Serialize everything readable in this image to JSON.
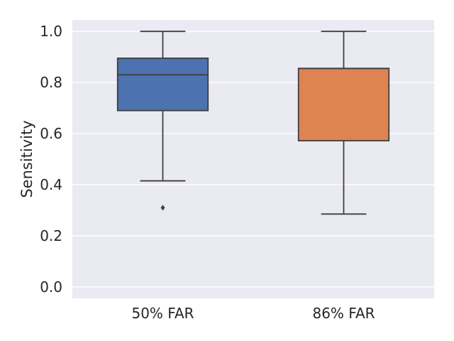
{
  "chart_data": {
    "type": "box",
    "ylabel": "Sensitivity",
    "xlabel": "",
    "ylim": [
      -0.045,
      1.045
    ],
    "grid": true,
    "yticks": [
      {
        "value": 0.0,
        "label": "0.0"
      },
      {
        "value": 0.2,
        "label": "0.2"
      },
      {
        "value": 0.4,
        "label": "0.4"
      },
      {
        "value": 0.6,
        "label": "0.6"
      },
      {
        "value": 0.8,
        "label": "0.8"
      },
      {
        "value": 1.0,
        "label": "1.0"
      }
    ],
    "categories": [
      "50% FAR",
      "86% FAR"
    ],
    "boxes": [
      {
        "category": "50% FAR",
        "whisker_low": 0.415,
        "q1": 0.69,
        "median": 0.83,
        "q3": 0.895,
        "whisker_high": 1.0,
        "outliers": [
          0.31
        ],
        "color": "#4c72b0"
      },
      {
        "category": "86% FAR",
        "whisker_low": 0.285,
        "q1": 0.572,
        "median": 0.855,
        "q3": 0.855,
        "whisker_high": 1.0,
        "outliers": [],
        "color": "#dd8452"
      }
    ],
    "colors": {
      "plot_background": "#eaeaf2",
      "grid": "#ffffff",
      "line": "#3f3f3f"
    }
  }
}
